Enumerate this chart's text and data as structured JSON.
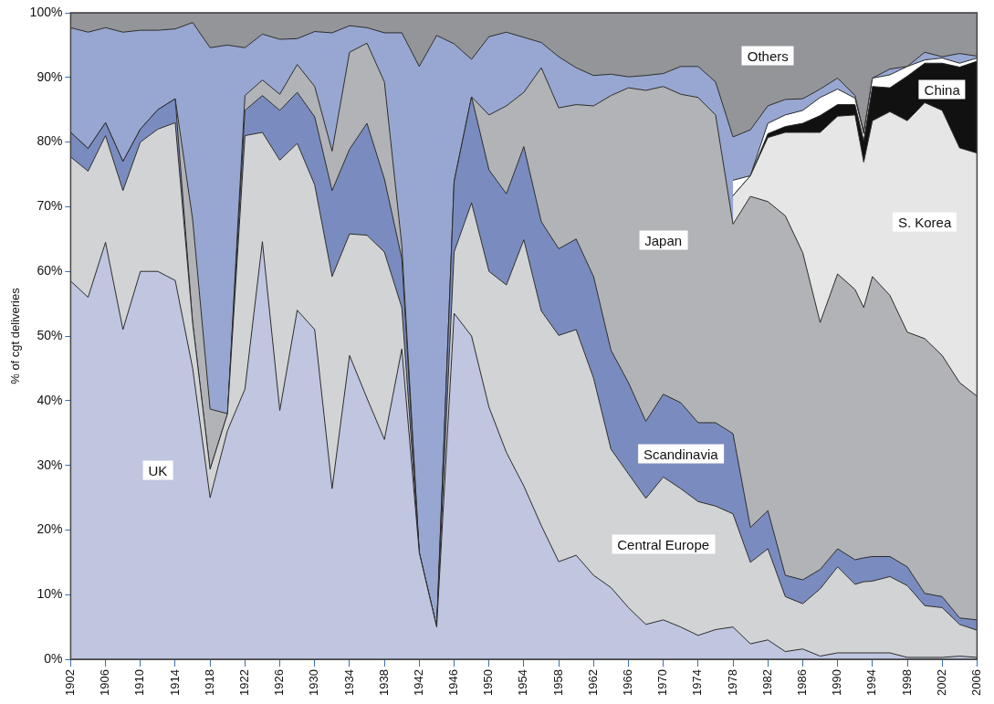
{
  "chart_data": {
    "type": "area",
    "stacked": true,
    "ylabel": "% of cgt deliveries",
    "legend": false,
    "grid": false,
    "x": [
      1902,
      1904,
      1906,
      1908,
      1910,
      1912,
      1914,
      1916,
      1918,
      1920,
      1922,
      1924,
      1926,
      1928,
      1930,
      1932,
      1934,
      1936,
      1938,
      1940,
      1942,
      1944,
      1946,
      1948,
      1950,
      1952,
      1954,
      1956,
      1958,
      1960,
      1962,
      1964,
      1966,
      1968,
      1970,
      1972,
      1974,
      1976,
      1978,
      1980,
      1982,
      1984,
      1986,
      1988,
      1990,
      1992,
      1993,
      1994,
      1996,
      1998,
      2000,
      2002,
      2004,
      2006
    ],
    "xlim": [
      1902,
      2006
    ],
    "xticks": [
      1902,
      1906,
      1910,
      1914,
      1918,
      1922,
      1926,
      1930,
      1934,
      1938,
      1942,
      1946,
      1950,
      1954,
      1958,
      1962,
      1966,
      1970,
      1974,
      1978,
      1982,
      1986,
      1990,
      1994,
      1998,
      2002,
      2006
    ],
    "ylim": [
      0,
      100
    ],
    "yticks": [
      {
        "value": 0,
        "label": "0%"
      },
      {
        "value": 10,
        "label": "10%"
      },
      {
        "value": 20,
        "label": "20%"
      },
      {
        "value": 30,
        "label": "30%"
      },
      {
        "value": 40,
        "label": "40%"
      },
      {
        "value": 50,
        "label": "50%"
      },
      {
        "value": 60,
        "label": "60%"
      },
      {
        "value": 70,
        "label": "70%"
      },
      {
        "value": 80,
        "label": "80%"
      },
      {
        "value": 90,
        "label": "90%"
      },
      {
        "value": 100,
        "label": "100%"
      }
    ],
    "series": [
      {
        "name": "UK",
        "color": "#c0c6e0",
        "values": [
          58.5,
          56,
          64.5,
          51,
          60,
          60,
          58.6,
          45,
          25,
          35.4,
          41.8,
          64.6,
          38.5,
          54,
          51,
          26.4,
          47,
          40.4,
          34,
          48,
          16.5,
          5,
          53.5,
          50,
          39,
          32,
          26.8,
          20.7,
          15.1,
          16.1,
          13,
          11.1,
          8,
          5.4,
          6.1,
          5,
          3.7,
          4.6,
          5,
          2.4,
          3,
          1.2,
          1.6,
          0.5,
          1,
          1,
          1,
          1,
          1,
          0.3,
          0.3,
          0.3,
          0.5,
          0.3
        ]
      },
      {
        "name": "Central Europe",
        "color": "#d2d3d5",
        "values": [
          19.2,
          19.5,
          16.5,
          21.5,
          20,
          22,
          24.4,
          7,
          4.4,
          2.6,
          39.2,
          16.9,
          38.7,
          25.8,
          22.4,
          32.8,
          18.8,
          25.2,
          29,
          6.4,
          0,
          0,
          9.5,
          20.6,
          21,
          25.9,
          38.1,
          33.2,
          35,
          34.9,
          30.5,
          21.4,
          20.7,
          19.5,
          22.1,
          21.4,
          20.7,
          19.1,
          17.5,
          12.6,
          14.1,
          8.5,
          7,
          10.4,
          13.3,
          10.6,
          11,
          11.1,
          11.8,
          11.1,
          8,
          7.7,
          4.9,
          4.2
        ]
      },
      {
        "name": "Scandinavia",
        "color": "#7a8cbf",
        "values": [
          3.8,
          3.5,
          2,
          4.5,
          2,
          3,
          3.7,
          0,
          0,
          0,
          3.9,
          5.7,
          7.7,
          7.9,
          10.5,
          13.3,
          13.1,
          17.3,
          11.3,
          7.6,
          0,
          0,
          10.9,
          16.4,
          15.7,
          14.1,
          14.4,
          13.8,
          13.4,
          14,
          15.7,
          15.3,
          14.1,
          11.9,
          12.8,
          13.3,
          12.2,
          12.9,
          12.4,
          5.4,
          5.9,
          3.3,
          3.7,
          3,
          2.8,
          3.8,
          3.7,
          3.8,
          3.1,
          2.9,
          1.9,
          1.7,
          1,
          1.6
        ]
      },
      {
        "name": "Japan",
        "color": "#b2b3b6",
        "values": [
          0,
          0,
          0,
          0,
          0,
          0,
          0,
          16,
          9.3,
          0,
          2.3,
          2.4,
          2.5,
          4.3,
          4.7,
          6.1,
          15,
          12.4,
          15,
          2,
          0,
          0,
          0,
          0,
          8.5,
          13.6,
          8.4,
          23.8,
          21.8,
          20.8,
          26.4,
          39.4,
          45.6,
          51.2,
          47.6,
          47.7,
          50.3,
          47.6,
          32.4,
          51.2,
          47.8,
          55.6,
          50.6,
          38.2,
          42.5,
          41.8,
          38.7,
          43.3,
          40.4,
          36.3,
          39.4,
          37.3,
          36.4,
          34.6
        ]
      },
      {
        "name": "S. Korea",
        "color": "#e6e6e6",
        "values": [
          null,
          null,
          null,
          null,
          null,
          null,
          null,
          null,
          null,
          null,
          null,
          null,
          null,
          null,
          null,
          null,
          null,
          null,
          null,
          null,
          null,
          null,
          null,
          null,
          null,
          null,
          null,
          null,
          null,
          null,
          null,
          null,
          null,
          null,
          null,
          null,
          null,
          null,
          4.4,
          3.2,
          9.9,
          12.9,
          18.6,
          29.4,
          24.4,
          27,
          22.5,
          24.1,
          28.4,
          32.7,
          36.5,
          37.9,
          36.3,
          37.6
        ]
      },
      {
        "name": "China",
        "color": "#111111",
        "values": [
          null,
          null,
          null,
          null,
          null,
          null,
          null,
          null,
          null,
          null,
          null,
          null,
          null,
          null,
          null,
          null,
          null,
          null,
          null,
          null,
          null,
          null,
          null,
          null,
          null,
          null,
          null,
          null,
          null,
          null,
          null,
          null,
          null,
          null,
          null,
          null,
          null,
          null,
          0,
          0,
          0.6,
          0.9,
          1.4,
          2.6,
          1.8,
          1.6,
          3.3,
          5.3,
          3.7,
          6.9,
          6.1,
          7.3,
          12.5,
          14.2
        ]
      },
      {
        "color": "#ffffff",
        "values": [
          null,
          null,
          null,
          null,
          null,
          null,
          null,
          null,
          null,
          null,
          null,
          null,
          null,
          null,
          null,
          null,
          null,
          null,
          null,
          null,
          null,
          null,
          null,
          null,
          null,
          null,
          null,
          null,
          null,
          null,
          null,
          null,
          null,
          null,
          null,
          null,
          null,
          null,
          2.4,
          0,
          1.6,
          1.8,
          2,
          2.8,
          2.4,
          1,
          1.1,
          1.3,
          2,
          1.5,
          0.5,
          0.8,
          0.6,
          0.5
        ]
      },
      {
        "color": "#97a7d1",
        "values": [
          16.2,
          18,
          14.7,
          20,
          15.3,
          12.3,
          10.8,
          30.5,
          55.9,
          57,
          7.4,
          7.1,
          8.5,
          4,
          8.5,
          18.3,
          4.1,
          2.4,
          7.6,
          32.9,
          75.2,
          91.5,
          21.3,
          5.8,
          12.1,
          11.4,
          8.5,
          3.9,
          7.9,
          5.7,
          4.7,
          3.3,
          1.7,
          2.3,
          2,
          4.3,
          4.8,
          5.1,
          6.7,
          7.1,
          2.7,
          2.4,
          1.8,
          1.3,
          1.7,
          0.4,
          0.2,
          0,
          0.9,
          0,
          1.2,
          0.2,
          1.5,
          0.3
        ]
      },
      {
        "name": "Others",
        "color": "#949599",
        "values": [
          2.3,
          3,
          2.3,
          3,
          2.7,
          2.7,
          2.5,
          1.5,
          5.4,
          5,
          5.4,
          3.3,
          4.1,
          4,
          2.9,
          3.1,
          2,
          2.3,
          3.1,
          3.1,
          8.3,
          3.5,
          4.8,
          7.2,
          3.7,
          3,
          3.8,
          4.6,
          6.8,
          8.5,
          9.7,
          9.5,
          9.9,
          9.7,
          9.4,
          8.3,
          8.3,
          10.7,
          19.2,
          18.1,
          14.4,
          13.4,
          13.3,
          11.8,
          10.1,
          12.8,
          18.5,
          10.1,
          8.7,
          8.3,
          6.1,
          6.8,
          6.3,
          6.7
        ]
      }
    ]
  }
}
